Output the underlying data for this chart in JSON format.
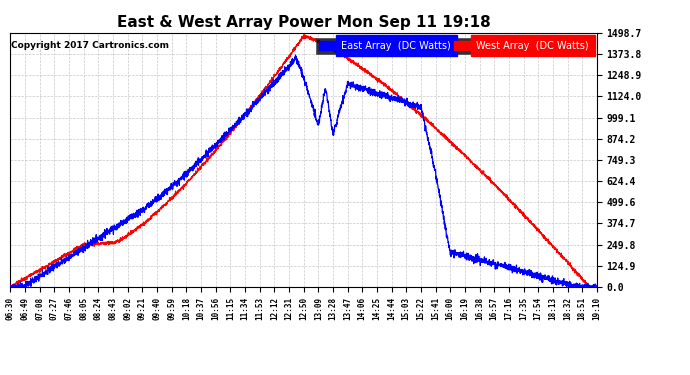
{
  "title": "East & West Array Power Mon Sep 11 19:18",
  "copyright": "Copyright 2017 Cartronics.com",
  "legend_east": "East Array  (DC Watts)",
  "legend_west": "West Array  (DC Watts)",
  "east_color": "#0000ff",
  "west_color": "#ff0000",
  "background_color": "#ffffff",
  "plot_bg_color": "#ffffff",
  "grid_color": "#aaaaaa",
  "yticks": [
    0.0,
    124.9,
    249.8,
    374.7,
    499.6,
    624.4,
    749.3,
    874.2,
    999.1,
    1124.0,
    1248.9,
    1373.8,
    1498.7
  ],
  "ymax": 1498.7,
  "ymin": 0.0,
  "xtick_labels": [
    "06:30",
    "06:49",
    "07:08",
    "07:27",
    "07:46",
    "08:05",
    "08:24",
    "08:43",
    "09:02",
    "09:21",
    "09:40",
    "09:59",
    "10:18",
    "10:37",
    "10:56",
    "11:15",
    "11:34",
    "11:53",
    "12:12",
    "12:31",
    "12:50",
    "13:09",
    "13:28",
    "13:47",
    "14:06",
    "14:25",
    "14:44",
    "15:03",
    "15:22",
    "15:41",
    "16:00",
    "16:19",
    "16:38",
    "16:57",
    "17:16",
    "17:35",
    "17:54",
    "18:13",
    "18:32",
    "18:51",
    "19:10"
  ]
}
